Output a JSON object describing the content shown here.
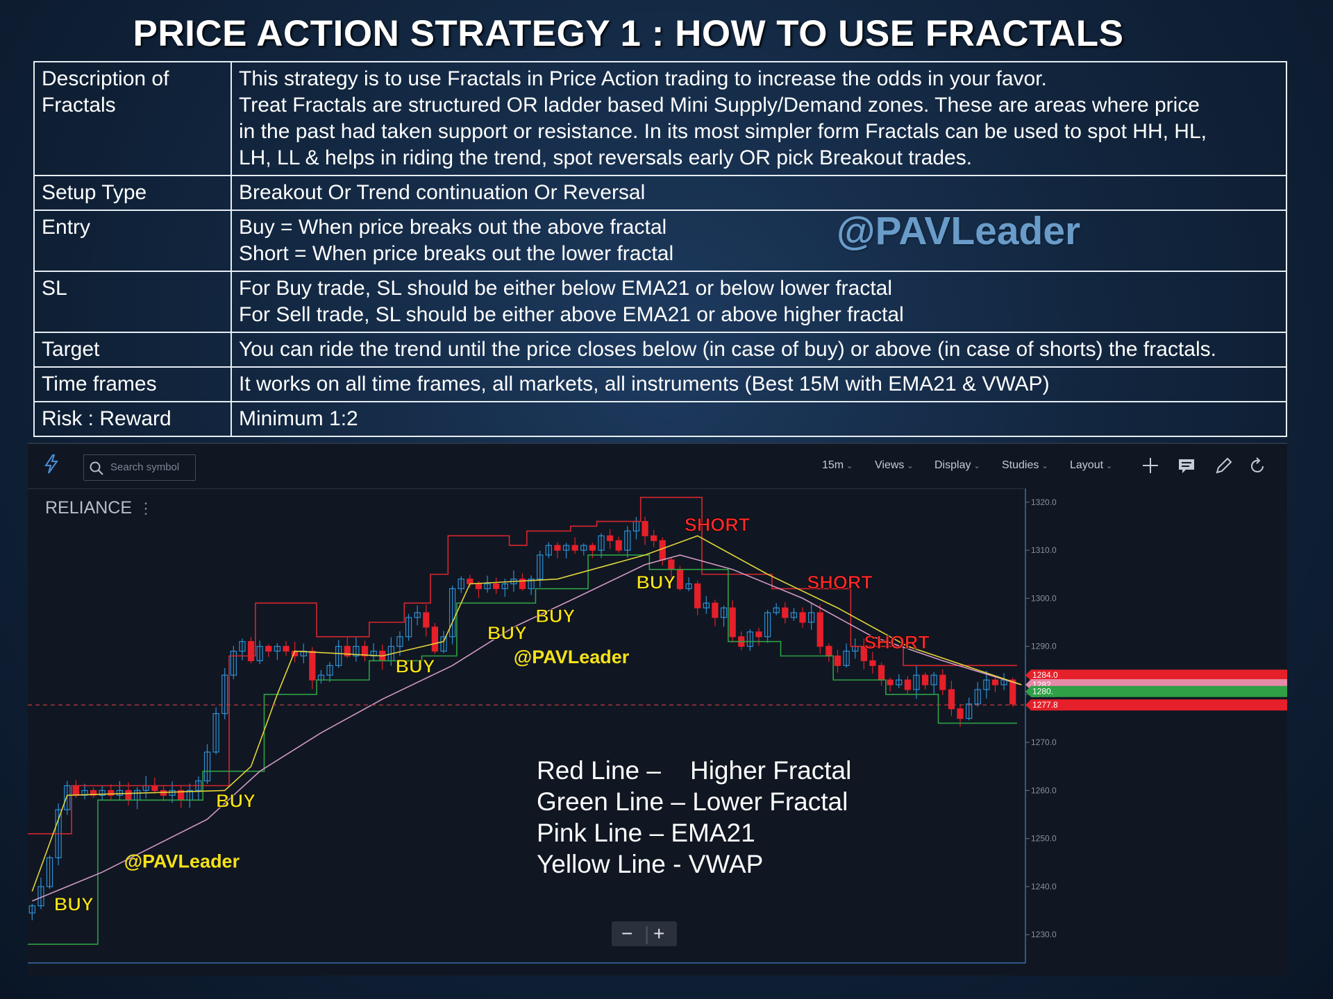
{
  "title": "PRICE ACTION STRATEGY 1 : HOW TO USE FRACTALS",
  "table": [
    {
      "label": [
        "Description of",
        "Fractals"
      ],
      "lines": [
        "This strategy is to use Fractals in Price Action trading to increase the odds in your favor.",
        "Treat Fractals are structured OR ladder based Mini Supply/Demand zones. These are areas where price",
        "in the past had taken support or resistance. In its most simpler form Fractals can be used to spot HH, HL,",
        "LH, LL & helps in riding the trend, spot reversals early OR pick Breakout trades."
      ]
    },
    {
      "label": [
        "Setup Type"
      ],
      "lines": [
        "Breakout Or Trend continuation Or Reversal"
      ]
    },
    {
      "label": [
        "Entry"
      ],
      "lines": [
        "Buy = When price breaks out the above fractal",
        "Short = When price breaks out the lower fractal"
      ]
    },
    {
      "label": [
        "SL"
      ],
      "lines": [
        "For Buy trade, SL should be either below EMA21 or below lower fractal",
        "For Sell trade, SL should be either above EMA21 or above higher fractal"
      ]
    },
    {
      "label": [
        "Target"
      ],
      "lines": [
        "You can ride the trend until the price closes below (in case of buy) or above (in case of shorts) the fractals."
      ]
    },
    {
      "label": [
        "Time frames"
      ],
      "lines": [
        "It works on all time frames, all markets, all instruments (Best 15M with EMA21 & VWAP)"
      ]
    },
    {
      "label": [
        "Risk : Reward"
      ],
      "lines": [
        "Minimum 1:2"
      ]
    }
  ],
  "watermark": "@PAVLeader",
  "toolbar": {
    "search_placeholder": "Search symbol",
    "interval": "15m",
    "menus": [
      "Views",
      "Display",
      "Studies",
      "Layout"
    ],
    "icons": [
      "crosshair-icon",
      "comment-icon",
      "pencil-icon",
      "refresh-icon"
    ]
  },
  "symbol": "RELIANCE",
  "legend_lines": [
    "Red Line –",
    "Higher Fractal",
    "Green Line – Lower Fractal",
    "Pink Line – EMA21",
    "Yellow Line - VWAP"
  ],
  "zoom": {
    "minus": "−",
    "plus": "+"
  },
  "colors": {
    "background": "#101722",
    "up_candle": "#2e8fd6",
    "down_candle": "#e5202a",
    "higher_fractal": "#d7262e",
    "lower_fractal": "#2fa046",
    "ema21": "#d49ac7",
    "vwap": "#e3d43a",
    "buy_label": "#f5e21a",
    "short_label": "#ff2a2a"
  },
  "chart_data": {
    "type": "candlestick",
    "ylim": [
      1227,
      1322
    ],
    "y_ticks": [
      "1320.0",
      "1310.0",
      "1300.0",
      "1290.0",
      "1280.0",
      "1270.0",
      "1260.0",
      "1250.0",
      "1240.0",
      "1230.0"
    ],
    "y_tick_values": [
      1320,
      1310,
      1300,
      1290,
      1280,
      1270,
      1260,
      1250,
      1240,
      1230
    ],
    "price_labels": [
      {
        "text": "1284.0",
        "value": 1284.0,
        "color": "#e5202a"
      },
      {
        "text": "1282.",
        "value": 1282.0,
        "color": "#e58aa8"
      },
      {
        "text": "1280.",
        "value": 1280.6,
        "color": "#2fa046"
      },
      {
        "text": "1277.8",
        "value": 1277.8,
        "color": "#e5202a"
      }
    ],
    "last_price": 1277.8,
    "path": [
      1236,
      1240,
      1246,
      1256,
      1261,
      1259,
      1260,
      1259,
      1260,
      1259,
      1260,
      1258,
      1260,
      1261,
      1260,
      1259,
      1260,
      1258,
      1260,
      1262,
      1268,
      1276,
      1284,
      1289,
      1291,
      1287,
      1290,
      1289,
      1290,
      1289,
      1288,
      1289,
      1283,
      1284,
      1286,
      1290,
      1288,
      1290,
      1288,
      1289,
      1287,
      1290,
      1292,
      1296,
      1297,
      1294,
      1289,
      1292,
      1302,
      1304,
      1303,
      1302,
      1303,
      1302,
      1303,
      1304,
      1302,
      1304,
      1309,
      1311,
      1310,
      1311,
      1310,
      1311,
      1310,
      1313,
      1312,
      1310,
      1314,
      1316,
      1313,
      1312,
      1308,
      1306,
      1302,
      1303,
      1298,
      1299,
      1296,
      1298,
      1292,
      1290,
      1293,
      1292,
      1297,
      1298,
      1296,
      1297,
      1295,
      1297,
      1290,
      1288,
      1286,
      1289,
      1290,
      1287,
      1286,
      1283,
      1282,
      1283,
      1281,
      1284,
      1282,
      1284,
      1281,
      1277,
      1275,
      1278,
      1281,
      1283,
      1282,
      1283,
      1278
    ],
    "higher_fractal": [
      {
        "from": 0,
        "to": 5,
        "value": 1251
      },
      {
        "from": 5,
        "to": 23,
        "value": 1261
      },
      {
        "from": 23,
        "to": 26,
        "value": 1288
      },
      {
        "from": 26,
        "to": 33,
        "value": 1299
      },
      {
        "from": 33,
        "to": 39,
        "value": 1292
      },
      {
        "from": 39,
        "to": 43,
        "value": 1295
      },
      {
        "from": 43,
        "to": 46,
        "value": 1299
      },
      {
        "from": 46,
        "to": 48,
        "value": 1305
      },
      {
        "from": 48,
        "to": 55,
        "value": 1313
      },
      {
        "from": 55,
        "to": 57,
        "value": 1311
      },
      {
        "from": 57,
        "to": 62,
        "value": 1314
      },
      {
        "from": 62,
        "to": 65,
        "value": 1315
      },
      {
        "from": 65,
        "to": 70,
        "value": 1316
      },
      {
        "from": 70,
        "to": 77,
        "value": 1321
      },
      {
        "from": 77,
        "to": 85,
        "value": 1305
      },
      {
        "from": 85,
        "to": 94,
        "value": 1302
      },
      {
        "from": 94,
        "to": 100,
        "value": 1290
      },
      {
        "from": 100,
        "to": 113,
        "value": 1286
      }
    ],
    "lower_fractal": [
      {
        "from": 0,
        "to": 8,
        "value": 1228
      },
      {
        "from": 8,
        "to": 20,
        "value": 1258
      },
      {
        "from": 20,
        "to": 27,
        "value": 1264
      },
      {
        "from": 27,
        "to": 33,
        "value": 1280
      },
      {
        "from": 33,
        "to": 39,
        "value": 1283
      },
      {
        "from": 39,
        "to": 45,
        "value": 1287
      },
      {
        "from": 45,
        "to": 49,
        "value": 1288
      },
      {
        "from": 49,
        "to": 58,
        "value": 1299
      },
      {
        "from": 58,
        "to": 64,
        "value": 1302
      },
      {
        "from": 64,
        "to": 71,
        "value": 1309
      },
      {
        "from": 71,
        "to": 80,
        "value": 1306
      },
      {
        "from": 80,
        "to": 86,
        "value": 1291
      },
      {
        "from": 86,
        "to": 92,
        "value": 1288
      },
      {
        "from": 92,
        "to": 98,
        "value": 1283
      },
      {
        "from": 98,
        "to": 104,
        "value": 1280
      },
      {
        "from": 104,
        "to": 113,
        "value": 1274
      }
    ],
    "ema21": [
      [
        0,
        1237
      ],
      [
        8,
        1243
      ],
      [
        20,
        1254
      ],
      [
        26,
        1264
      ],
      [
        33,
        1272
      ],
      [
        40,
        1279
      ],
      [
        48,
        1286
      ],
      [
        55,
        1294
      ],
      [
        62,
        1300
      ],
      [
        70,
        1307
      ],
      [
        74,
        1309
      ],
      [
        80,
        1306
      ],
      [
        88,
        1300
      ],
      [
        96,
        1292
      ],
      [
        104,
        1287
      ],
      [
        113,
        1282
      ]
    ],
    "vwap": [
      [
        0,
        1239
      ],
      [
        4,
        1259
      ],
      [
        22,
        1260
      ],
      [
        25,
        1265
      ],
      [
        28,
        1280
      ],
      [
        30,
        1289
      ],
      [
        40,
        1288
      ],
      [
        47,
        1291
      ],
      [
        50,
        1303
      ],
      [
        60,
        1304
      ],
      [
        70,
        1309
      ],
      [
        76,
        1313
      ],
      [
        84,
        1305
      ],
      [
        92,
        1298
      ],
      [
        100,
        1290
      ],
      [
        113,
        1282
      ]
    ],
    "annotations": [
      {
        "text": "BUY",
        "kind": "buy",
        "x": 2.5,
        "y": 1235
      },
      {
        "text": "BUY",
        "kind": "buy",
        "x": 21,
        "y": 1256.5
      },
      {
        "text": "BUY",
        "kind": "buy",
        "x": 41.5,
        "y": 1284.5
      },
      {
        "text": "BUY",
        "kind": "buy",
        "x": 52,
        "y": 1291.5
      },
      {
        "text": "BUY",
        "kind": "buy",
        "x": 57.5,
        "y": 1295
      },
      {
        "text": "BUY",
        "kind": "buy",
        "x": 69,
        "y": 1302
      },
      {
        "text": "SHORT",
        "kind": "short",
        "x": 74.5,
        "y": 1314
      },
      {
        "text": "SHORT",
        "kind": "short",
        "x": 88.5,
        "y": 1302
      },
      {
        "text": "SHORT",
        "kind": "short",
        "x": 95,
        "y": 1289.5
      }
    ],
    "watermarks": [
      {
        "text": "@PAVLeader",
        "x": 10.5,
        "y": 1244
      },
      {
        "text": "@PAVLeader",
        "x": 55,
        "y": 1286.5
      }
    ]
  }
}
